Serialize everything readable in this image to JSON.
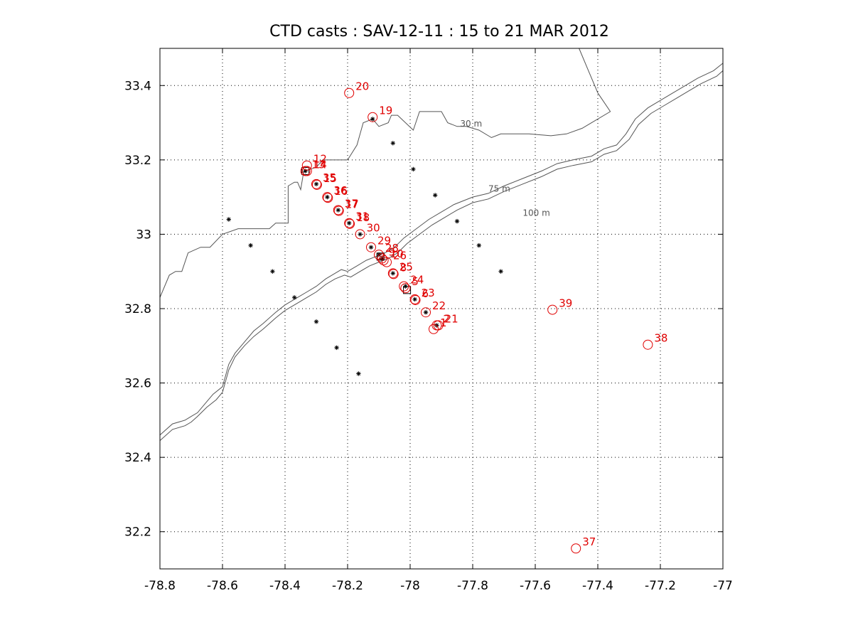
{
  "chart_data": {
    "type": "scatter",
    "title": "CTD casts :  SAV-12-11 :  15 to 21  MAR  2012",
    "xlim": [
      -78.8,
      -77
    ],
    "ylim": [
      32.1,
      33.5
    ],
    "grid": true,
    "x_ticks": [
      -78.8,
      -78.6,
      -78.4,
      -78.2,
      -78,
      -77.8,
      -77.6,
      -77.4,
      -77.2,
      -77
    ],
    "x_tick_labels": [
      "-78.8",
      "-78.6",
      "-78.4",
      "-78.2",
      "-78",
      "-77.8",
      "-77.6",
      "-77.4",
      "-77.2",
      "-77"
    ],
    "y_ticks": [
      32.2,
      32.4,
      32.6,
      32.8,
      33,
      33.2,
      33.4
    ],
    "y_tick_labels": [
      "32.2",
      "32.4",
      "32.6",
      "32.8",
      "33",
      "33.2",
      "33.4"
    ],
    "contours": [
      {
        "label": "30 m",
        "label_at": [
          -77.84,
          33.29
        ],
        "points": [
          [
            -78.8,
            32.83
          ],
          [
            -78.77,
            32.89
          ],
          [
            -78.75,
            32.9
          ],
          [
            -78.73,
            32.9
          ],
          [
            -78.71,
            32.95
          ],
          [
            -78.67,
            32.965
          ],
          [
            -78.64,
            32.965
          ],
          [
            -78.6,
            33.0
          ],
          [
            -78.55,
            33.015
          ],
          [
            -78.5,
            33.015
          ],
          [
            -78.45,
            33.015
          ],
          [
            -78.43,
            33.03
          ],
          [
            -78.39,
            33.03
          ],
          [
            -78.39,
            33.13
          ],
          [
            -78.37,
            33.14
          ],
          [
            -78.36,
            33.14
          ],
          [
            -78.35,
            33.12
          ],
          [
            -78.34,
            33.17
          ],
          [
            -78.3,
            33.18
          ],
          [
            -78.28,
            33.2
          ],
          [
            -78.2,
            33.2
          ],
          [
            -78.17,
            33.24
          ],
          [
            -78.15,
            33.3
          ],
          [
            -78.12,
            33.31
          ],
          [
            -78.1,
            33.29
          ],
          [
            -78.07,
            33.3
          ],
          [
            -78.06,
            33.32
          ],
          [
            -78.04,
            33.32
          ],
          [
            -77.99,
            33.28
          ],
          [
            -77.97,
            33.33
          ],
          [
            -77.9,
            33.33
          ],
          [
            -77.88,
            33.3
          ],
          [
            -77.85,
            33.29
          ],
          [
            -77.82,
            33.29
          ],
          [
            -77.78,
            33.28
          ],
          [
            -77.74,
            33.26
          ],
          [
            -77.71,
            33.27
          ],
          [
            -77.68,
            33.27
          ],
          [
            -77.62,
            33.27
          ],
          [
            -77.55,
            33.265
          ],
          [
            -77.5,
            33.27
          ],
          [
            -77.45,
            33.285
          ],
          [
            -77.42,
            33.3
          ],
          [
            -77.36,
            33.33
          ],
          [
            -77.4,
            33.38
          ],
          [
            -77.43,
            33.44
          ],
          [
            -77.46,
            33.5
          ]
        ]
      },
      {
        "label": "75 m",
        "label_at": [
          -77.75,
          33.115
        ],
        "points": [
          [
            -78.8,
            32.46
          ],
          [
            -78.76,
            32.49
          ],
          [
            -78.72,
            32.5
          ],
          [
            -78.7,
            32.51
          ],
          [
            -78.68,
            32.52
          ],
          [
            -78.65,
            32.55
          ],
          [
            -78.63,
            32.57
          ],
          [
            -78.6,
            32.59
          ],
          [
            -78.58,
            32.65
          ],
          [
            -78.56,
            32.68
          ],
          [
            -78.53,
            32.71
          ],
          [
            -78.5,
            32.74
          ],
          [
            -78.47,
            32.76
          ],
          [
            -78.43,
            32.79
          ],
          [
            -78.4,
            32.81
          ],
          [
            -78.36,
            32.83
          ],
          [
            -78.33,
            32.845
          ],
          [
            -78.3,
            32.86
          ],
          [
            -78.27,
            32.88
          ],
          [
            -78.24,
            32.895
          ],
          [
            -78.22,
            32.905
          ],
          [
            -78.2,
            32.9
          ],
          [
            -78.17,
            32.915
          ],
          [
            -78.14,
            32.93
          ],
          [
            -78.11,
            32.94
          ],
          [
            -78.08,
            32.95
          ],
          [
            -78.05,
            32.965
          ],
          [
            -78.02,
            32.99
          ],
          [
            -77.98,
            33.015
          ],
          [
            -77.94,
            33.04
          ],
          [
            -77.9,
            33.06
          ],
          [
            -77.86,
            33.08
          ],
          [
            -77.8,
            33.1
          ],
          [
            -77.75,
            33.11
          ],
          [
            -77.7,
            33.13
          ],
          [
            -77.64,
            33.15
          ],
          [
            -77.58,
            33.17
          ],
          [
            -77.53,
            33.19
          ],
          [
            -77.48,
            33.2
          ],
          [
            -77.42,
            33.21
          ],
          [
            -77.38,
            33.23
          ],
          [
            -77.34,
            33.24
          ],
          [
            -77.31,
            33.27
          ],
          [
            -77.28,
            33.31
          ],
          [
            -77.24,
            33.34
          ],
          [
            -77.2,
            33.36
          ],
          [
            -77.16,
            33.38
          ],
          [
            -77.12,
            33.4
          ],
          [
            -77.08,
            33.42
          ],
          [
            -77.03,
            33.44
          ],
          [
            -77.0,
            33.46
          ]
        ]
      },
      {
        "label": "100 m",
        "label_at": [
          -77.64,
          33.05
        ],
        "points": [
          [
            -78.8,
            32.445
          ],
          [
            -78.76,
            32.475
          ],
          [
            -78.72,
            32.485
          ],
          [
            -78.7,
            32.495
          ],
          [
            -78.68,
            32.51
          ],
          [
            -78.65,
            32.535
          ],
          [
            -78.62,
            32.555
          ],
          [
            -78.6,
            32.575
          ],
          [
            -78.58,
            32.635
          ],
          [
            -78.56,
            32.67
          ],
          [
            -78.53,
            32.7
          ],
          [
            -78.5,
            32.725
          ],
          [
            -78.47,
            32.745
          ],
          [
            -78.43,
            32.775
          ],
          [
            -78.4,
            32.795
          ],
          [
            -78.36,
            32.815
          ],
          [
            -78.33,
            32.83
          ],
          [
            -78.3,
            32.845
          ],
          [
            -78.27,
            32.865
          ],
          [
            -78.24,
            32.88
          ],
          [
            -78.21,
            32.89
          ],
          [
            -78.19,
            32.885
          ],
          [
            -78.16,
            32.9
          ],
          [
            -78.13,
            32.915
          ],
          [
            -78.1,
            32.925
          ],
          [
            -78.07,
            32.935
          ],
          [
            -78.04,
            32.95
          ],
          [
            -78.01,
            32.975
          ],
          [
            -77.97,
            33.0
          ],
          [
            -77.93,
            33.025
          ],
          [
            -77.89,
            33.045
          ],
          [
            -77.85,
            33.065
          ],
          [
            -77.8,
            33.085
          ],
          [
            -77.75,
            33.095
          ],
          [
            -77.7,
            33.115
          ],
          [
            -77.64,
            33.135
          ],
          [
            -77.58,
            33.155
          ],
          [
            -77.53,
            33.175
          ],
          [
            -77.48,
            33.185
          ],
          [
            -77.42,
            33.195
          ],
          [
            -77.38,
            33.215
          ],
          [
            -77.34,
            33.225
          ],
          [
            -77.3,
            33.255
          ],
          [
            -77.27,
            33.295
          ],
          [
            -77.23,
            33.325
          ],
          [
            -77.19,
            33.345
          ],
          [
            -77.15,
            33.365
          ],
          [
            -77.11,
            33.385
          ],
          [
            -77.07,
            33.405
          ],
          [
            -77.02,
            33.425
          ],
          [
            -77.0,
            33.44
          ]
        ]
      }
    ],
    "stations": [
      [
        -78.58,
        33.04
      ],
      [
        -78.51,
        32.97
      ],
      [
        -78.44,
        32.9
      ],
      [
        -78.37,
        32.83
      ],
      [
        -78.3,
        32.765
      ],
      [
        -78.235,
        32.695
      ],
      [
        -78.165,
        32.625
      ],
      [
        -78.055,
        33.245
      ],
      [
        -77.99,
        33.175
      ],
      [
        -77.92,
        33.105
      ],
      [
        -77.85,
        33.035
      ],
      [
        -77.78,
        32.97
      ],
      [
        -77.71,
        32.9
      ],
      [
        -78.12,
        33.31
      ],
      [
        -78.335,
        33.17
      ],
      [
        -78.3,
        33.135
      ],
      [
        -78.265,
        33.1
      ],
      [
        -78.23,
        33.065
      ],
      [
        -78.195,
        33.03
      ],
      [
        -78.16,
        33.0
      ],
      [
        -78.125,
        32.965
      ],
      [
        -78.1,
        32.945
      ],
      [
        -78.09,
        32.935
      ],
      [
        -78.055,
        32.895
      ],
      [
        -78.015,
        32.86
      ],
      [
        -77.985,
        32.825
      ],
      [
        -77.95,
        32.79
      ],
      [
        -77.915,
        32.755
      ]
    ],
    "boxes": [
      [
        -78.335,
        33.17
      ],
      [
        -78.095,
        32.94
      ],
      [
        -78.01,
        32.85
      ]
    ],
    "casts": [
      {
        "label": "20",
        "x": -78.195,
        "y": 33.38
      },
      {
        "label": "19",
        "x": -78.12,
        "y": 33.315
      },
      {
        "label": "12",
        "x": -78.33,
        "y": 33.185
      },
      {
        "label": "13",
        "x": -78.335,
        "y": 33.17
      },
      {
        "label": "14",
        "x": -78.33,
        "y": 33.17
      },
      {
        "label": "35",
        "x": -78.3,
        "y": 33.135
      },
      {
        "label": "15",
        "x": -78.298,
        "y": 33.133
      },
      {
        "label": "36",
        "x": -78.265,
        "y": 33.1
      },
      {
        "label": "16",
        "x": -78.263,
        "y": 33.098
      },
      {
        "label": "37",
        "x": -78.23,
        "y": 33.065
      },
      {
        "label": "17",
        "x": -78.228,
        "y": 33.063
      },
      {
        "label": "31",
        "x": -78.195,
        "y": 33.03
      },
      {
        "label": "18",
        "x": -78.193,
        "y": 33.028
      },
      {
        "label": "30",
        "x": -78.16,
        "y": 33.0
      },
      {
        "label": "29",
        "x": -78.125,
        "y": 32.965
      },
      {
        "label": "28",
        "x": -78.1,
        "y": 32.945
      },
      {
        "label": "9",
        "x": -78.09,
        "y": 32.935
      },
      {
        "label": "10",
        "x": -78.085,
        "y": 32.93
      },
      {
        "label": "26",
        "x": -78.075,
        "y": 32.925
      },
      {
        "label": "25",
        "x": -78.055,
        "y": 32.895
      },
      {
        "label": "8",
        "x": -78.053,
        "y": 32.893
      },
      {
        "label": "24",
        "x": -78.02,
        "y": 32.86
      },
      {
        "label": "5",
        "x": -78.015,
        "y": 32.855
      },
      {
        "label": "23",
        "x": -77.985,
        "y": 32.825
      },
      {
        "label": "6",
        "x": -77.983,
        "y": 32.823
      },
      {
        "label": "22",
        "x": -77.95,
        "y": 32.79
      },
      {
        "label": "21",
        "x": -77.91,
        "y": 32.755
      },
      {
        "label": "2",
        "x": -77.915,
        "y": 32.755
      },
      {
        "label": "1",
        "x": -77.925,
        "y": 32.745
      },
      {
        "label": "39",
        "x": -77.545,
        "y": 32.797
      },
      {
        "label": "38",
        "x": -77.24,
        "y": 32.703
      },
      {
        "label": "37",
        "x": -77.47,
        "y": 32.155
      }
    ],
    "styles": {
      "cast_color": "#e00000",
      "station_color": "#000000",
      "contour_color": "#555555",
      "grid_color": "#000000"
    }
  }
}
